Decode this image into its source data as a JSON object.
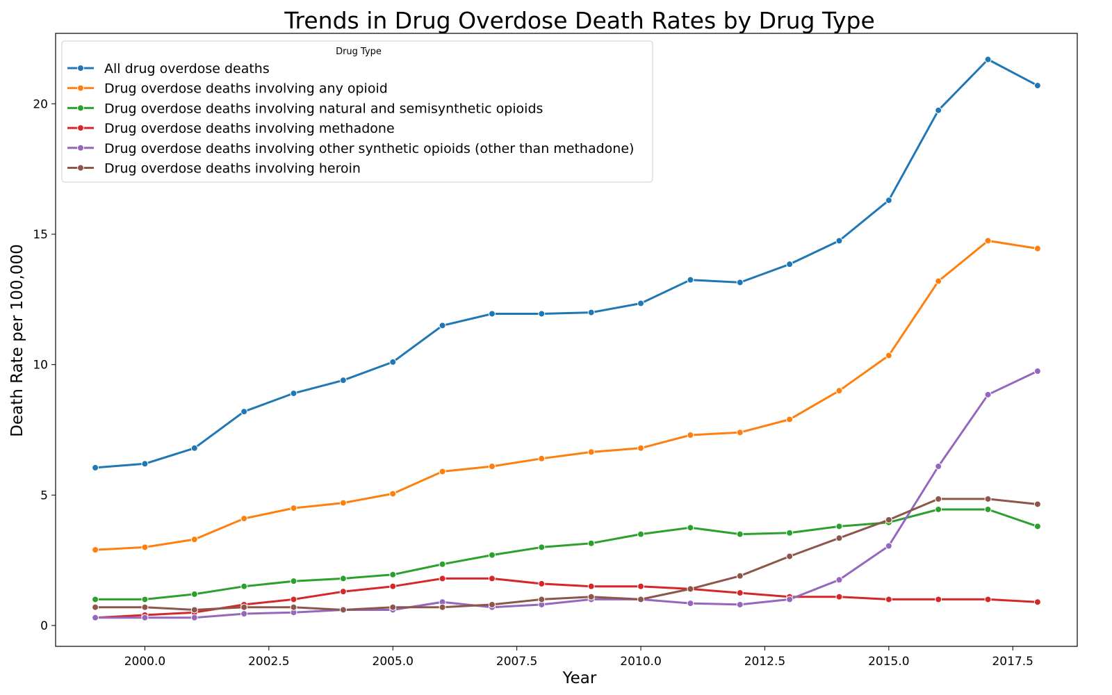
{
  "chart_data": {
    "type": "line",
    "title": "Trends in Drug Overdose Death Rates by Drug Type",
    "xlabel": "Year",
    "ylabel": "Death Rate per 100,000",
    "xlim": [
      1998.2,
      2018.8
    ],
    "ylim": [
      -0.8,
      22.7
    ],
    "x_ticks": [
      "2000.0",
      "2002.5",
      "2005.0",
      "2007.5",
      "2010.0",
      "2012.5",
      "2015.0",
      "2017.5"
    ],
    "y_ticks": [
      "0",
      "5",
      "10",
      "15",
      "20"
    ],
    "grid": false,
    "legend": {
      "title": "Drug Type",
      "placement": "top-left"
    },
    "x": [
      1999,
      2000,
      2001,
      2002,
      2003,
      2004,
      2005,
      2006,
      2007,
      2008,
      2009,
      2010,
      2011,
      2012,
      2013,
      2014,
      2015,
      2016,
      2017,
      2018
    ],
    "series": [
      {
        "name": "All drug overdose deaths",
        "color": "#1f77b4",
        "values": [
          6.05,
          6.2,
          6.8,
          8.2,
          8.9,
          9.4,
          10.1,
          11.5,
          11.95,
          11.95,
          12.0,
          12.35,
          13.25,
          13.15,
          13.85,
          14.75,
          16.3,
          19.75,
          21.7,
          20.7
        ]
      },
      {
        "name": "Drug overdose deaths involving any opioid",
        "color": "#ff7f0e",
        "values": [
          2.9,
          3.0,
          3.3,
          4.1,
          4.5,
          4.7,
          5.05,
          5.9,
          6.1,
          6.4,
          6.65,
          6.8,
          7.3,
          7.4,
          7.9,
          9.0,
          10.35,
          13.2,
          14.75,
          14.45
        ]
      },
      {
        "name": "Drug overdose deaths involving natural and semisynthetic opioids",
        "color": "#2ca02c",
        "values": [
          1.0,
          1.0,
          1.2,
          1.5,
          1.7,
          1.8,
          1.95,
          2.35,
          2.7,
          3.0,
          3.15,
          3.5,
          3.75,
          3.5,
          3.55,
          3.8,
          3.95,
          4.45,
          4.45,
          3.8
        ]
      },
      {
        "name": "Drug overdose deaths involving methadone",
        "color": "#d62728",
        "values": [
          0.3,
          0.4,
          0.5,
          0.8,
          1.0,
          1.3,
          1.5,
          1.8,
          1.8,
          1.6,
          1.5,
          1.5,
          1.4,
          1.25,
          1.1,
          1.1,
          1.0,
          1.0,
          1.0,
          0.9
        ]
      },
      {
        "name": "Drug overdose deaths involving other synthetic opioids (other than methadone)",
        "color": "#9467bd",
        "values": [
          0.3,
          0.3,
          0.3,
          0.45,
          0.5,
          0.6,
          0.6,
          0.9,
          0.7,
          0.8,
          1.0,
          1.0,
          0.85,
          0.8,
          1.0,
          1.75,
          3.05,
          6.1,
          8.85,
          9.75
        ]
      },
      {
        "name": "Drug overdose deaths involving heroin",
        "color": "#8c564b",
        "values": [
          0.7,
          0.7,
          0.6,
          0.7,
          0.7,
          0.6,
          0.7,
          0.7,
          0.8,
          1.0,
          1.1,
          1.0,
          1.4,
          1.9,
          2.65,
          3.35,
          4.05,
          4.85,
          4.85,
          4.65
        ]
      }
    ]
  }
}
